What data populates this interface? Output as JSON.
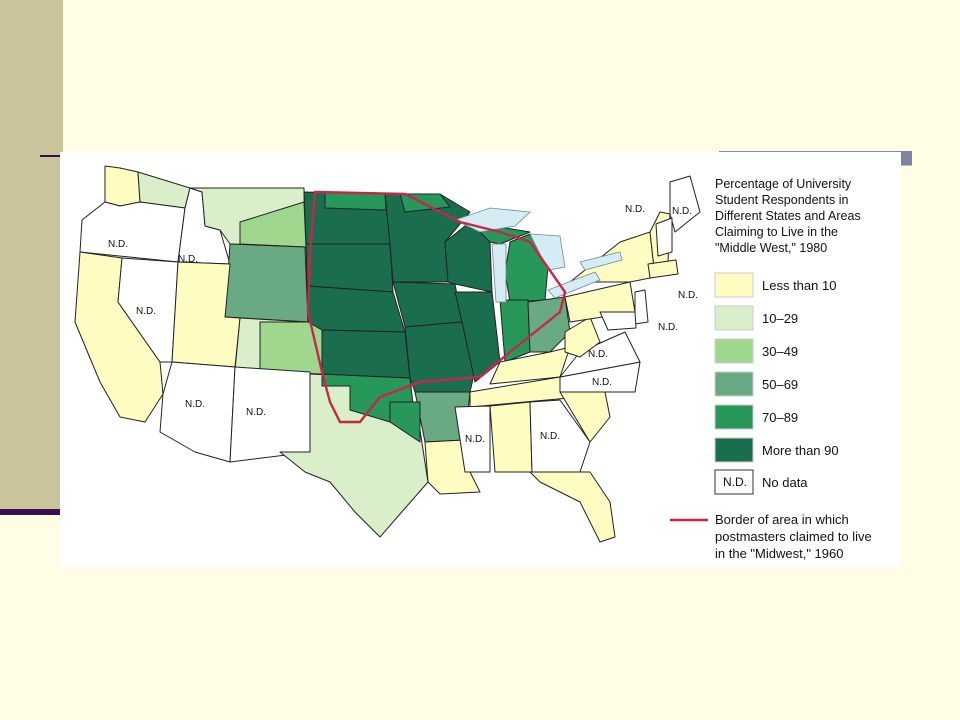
{
  "legend": {
    "title_lines": [
      "Percentage of University",
      "Student Respondents in",
      "Different States and Areas",
      "Claiming to Live in the",
      "\"Middle West,\" 1980"
    ],
    "items": [
      {
        "label": "Less than 10",
        "color": "#fffcc2"
      },
      {
        "label": "10–29",
        "color": "#d9efc9"
      },
      {
        "label": "30–49",
        "color": "#9fd78f"
      },
      {
        "label": "50–69",
        "color": "#6aaa82"
      },
      {
        "label": "70–89",
        "color": "#27975a"
      },
      {
        "label": "More than 90",
        "color": "#1a6e4e"
      },
      {
        "label": "No data",
        "color": "#ffffff",
        "swatch_text": "N.D."
      }
    ],
    "border_label_lines": [
      "Border of area in which",
      "postmasters claimed to live",
      "in the \"Midwest,\" 1960"
    ],
    "border_color": "#c9254a"
  },
  "nd_label": "N.D.",
  "colors": {
    "water": "#d6ecf5",
    "state_stroke": "#222222",
    "background": "#fffde6",
    "side_bar": "#c9c49b"
  }
}
